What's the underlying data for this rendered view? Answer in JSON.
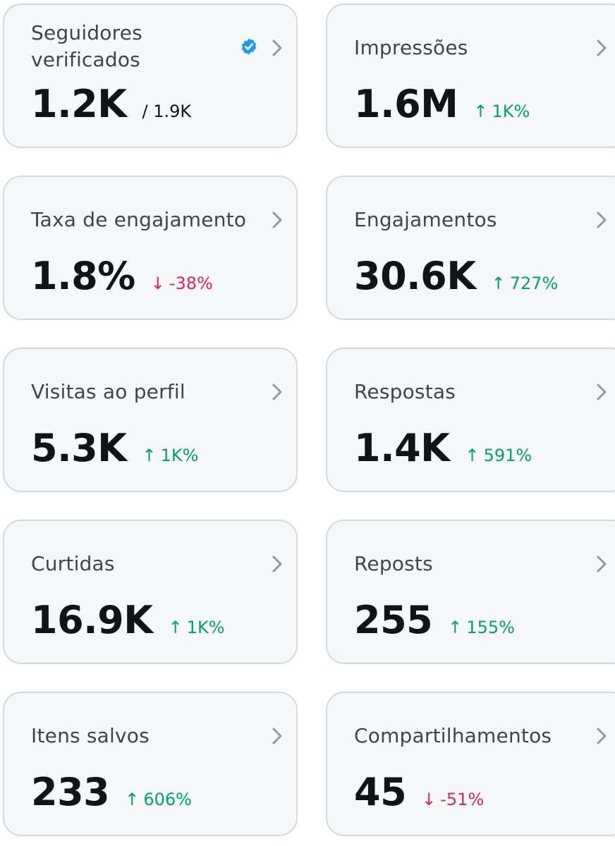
{
  "colors": {
    "card_background": "#f5f7f8",
    "card_border": "#cfd9de",
    "text_primary": "#0f1419",
    "text_secondary": "#3b4650",
    "positive": "#00a466",
    "negative": "#e0245e",
    "verified_badge": "#1d9bf0",
    "chevron": "#8b98a5"
  },
  "icons": {
    "chevron": "chevron-right-icon",
    "verified": "verified-badge-icon",
    "up": "arrow-up-icon",
    "down": "arrow-down-icon"
  },
  "cards": [
    {
      "title": "Seguidores verificados",
      "value": "1.2K",
      "sub": "/ 1.9K",
      "verified": true
    },
    {
      "title": "Impressões",
      "value": "1.6M",
      "change": "1K%",
      "direction": "up",
      "arrow": "↑"
    },
    {
      "title": "Taxa de engajamento",
      "value": "1.8%",
      "change": "-38%",
      "direction": "down",
      "arrow": "↓"
    },
    {
      "title": "Engajamentos",
      "value": "30.6K",
      "change": "727%",
      "direction": "up",
      "arrow": "↑"
    },
    {
      "title": "Visitas ao perfil",
      "value": "5.3K",
      "change": "1K%",
      "direction": "up",
      "arrow": "↑"
    },
    {
      "title": "Respostas",
      "value": "1.4K",
      "change": "591%",
      "direction": "up",
      "arrow": "↑"
    },
    {
      "title": "Curtidas",
      "value": "16.9K",
      "change": "1K%",
      "direction": "up",
      "arrow": "↑"
    },
    {
      "title": "Reposts",
      "value": "255",
      "change": "155%",
      "direction": "up",
      "arrow": "↑"
    },
    {
      "title": "Itens salvos",
      "value": "233",
      "change": "606%",
      "direction": "up",
      "arrow": "↑"
    },
    {
      "title": "Compartilhamentos",
      "value": "45",
      "change": "-51%",
      "direction": "down",
      "arrow": "↓"
    }
  ]
}
